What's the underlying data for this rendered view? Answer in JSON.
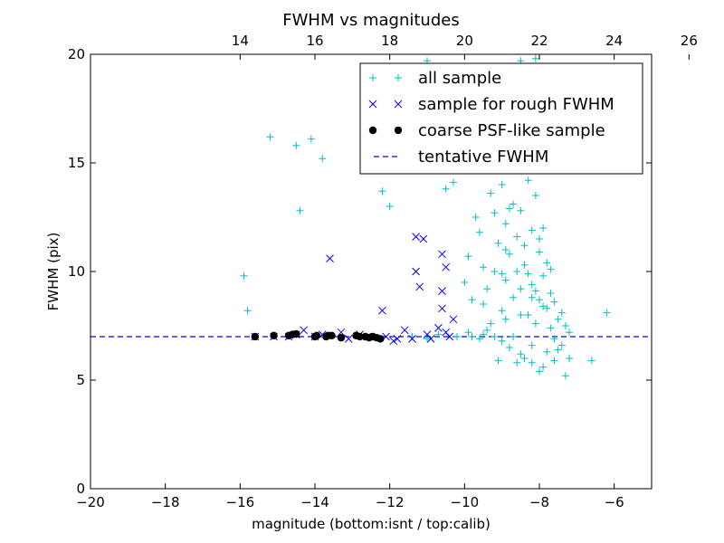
{
  "chart_data": {
    "type": "scatter",
    "title": "FWHM vs magnitudes",
    "xlabel": "magnitude (bottom:isnt / top:calib)",
    "ylabel": "FWHM (pix)",
    "xlim": [
      -20,
      -5
    ],
    "ylim": [
      0,
      20
    ],
    "x_ticks": [
      -20,
      -18,
      -16,
      -14,
      -12,
      -10,
      -8,
      -6
    ],
    "y_ticks": [
      0,
      5,
      10,
      15,
      20
    ],
    "top_axis": {
      "offset_from_bottom": 30,
      "ticks": [
        14,
        16,
        18,
        20,
        22,
        24,
        26
      ]
    },
    "grid": false,
    "legend_placement": "top-right",
    "tentative_fwhm": 7.0,
    "series": [
      {
        "name": "all sample",
        "marker": "plus",
        "color": "#00bfbf",
        "points": [
          [
            -15.9,
            9.8
          ],
          [
            -15.8,
            8.2
          ],
          [
            -15.2,
            16.2
          ],
          [
            -14.5,
            15.8
          ],
          [
            -14.4,
            12.8
          ],
          [
            -14.1,
            16.1
          ],
          [
            -13.8,
            15.2
          ],
          [
            -12.2,
            13.7
          ],
          [
            -12.0,
            13.0
          ],
          [
            -11.4,
            7.0
          ],
          [
            -11.0,
            19.7
          ],
          [
            -11.0,
            6.9
          ],
          [
            -10.7,
            7.1
          ],
          [
            -10.5,
            13.8
          ],
          [
            -10.3,
            14.1
          ],
          [
            -10.2,
            7.0
          ],
          [
            -9.9,
            7.2
          ],
          [
            -9.8,
            7.0
          ],
          [
            -9.6,
            6.9
          ],
          [
            -9.5,
            7.1
          ],
          [
            -9.4,
            7.3
          ],
          [
            -9.2,
            7.0
          ],
          [
            -9.0,
            6.8
          ],
          [
            -8.8,
            6.5
          ],
          [
            -8.5,
            6.2
          ],
          [
            -8.2,
            5.8
          ],
          [
            -7.9,
            5.6
          ],
          [
            -7.6,
            5.9
          ],
          [
            -7.3,
            5.2
          ],
          [
            -7.2,
            6.0
          ],
          [
            -6.6,
            5.9
          ],
          [
            -6.2,
            8.1
          ],
          [
            -8.6,
            5.8
          ],
          [
            -8.4,
            6.0
          ],
          [
            -9.1,
            5.9
          ],
          [
            -8.0,
            5.4
          ],
          [
            -7.5,
            6.4
          ],
          [
            -10.0,
            9.5
          ],
          [
            -9.9,
            10.7
          ],
          [
            -9.7,
            12.5
          ],
          [
            -9.6,
            11.8
          ],
          [
            -9.5,
            8.5
          ],
          [
            -9.4,
            9.2
          ],
          [
            -9.3,
            13.6
          ],
          [
            -9.2,
            10.0
          ],
          [
            -9.1,
            11.3
          ],
          [
            -9.0,
            14.0
          ],
          [
            -9.0,
            8.2
          ],
          [
            -8.9,
            12.2
          ],
          [
            -8.9,
            9.6
          ],
          [
            -8.8,
            15.8
          ],
          [
            -8.8,
            10.8
          ],
          [
            -8.7,
            13.1
          ],
          [
            -8.7,
            8.8
          ],
          [
            -8.6,
            16.5
          ],
          [
            -8.6,
            11.6
          ],
          [
            -8.5,
            12.8
          ],
          [
            -8.5,
            9.2
          ],
          [
            -8.4,
            17.0
          ],
          [
            -8.4,
            10.3
          ],
          [
            -8.3,
            14.2
          ],
          [
            -8.3,
            8.0
          ],
          [
            -8.2,
            11.9
          ],
          [
            -8.2,
            9.4
          ],
          [
            -8.1,
            13.5
          ],
          [
            -8.1,
            7.6
          ],
          [
            -8.0,
            10.9
          ],
          [
            -8.0,
            8.7
          ],
          [
            -7.9,
            12.0
          ],
          [
            -7.9,
            9.8
          ],
          [
            -7.8,
            8.3
          ],
          [
            -7.8,
            10.4
          ],
          [
            -7.7,
            9.0
          ],
          [
            -7.7,
            7.4
          ],
          [
            -7.6,
            8.6
          ],
          [
            -7.5,
            7.8
          ],
          [
            -7.4,
            8.1
          ],
          [
            -7.3,
            7.5
          ],
          [
            -7.2,
            7.2
          ],
          [
            -8.5,
            19.7
          ],
          [
            -8.3,
            18.8
          ],
          [
            -8.1,
            19.8
          ],
          [
            -8.6,
            14.9
          ],
          [
            -8.9,
            7.8
          ],
          [
            -9.3,
            7.6
          ],
          [
            -8.7,
            7.0
          ],
          [
            -8.2,
            6.6
          ],
          [
            -7.8,
            6.3
          ],
          [
            -7.6,
            6.9
          ],
          [
            -7.4,
            6.6
          ],
          [
            -9.8,
            8.7
          ],
          [
            -9.5,
            10.2
          ],
          [
            -9.2,
            12.7
          ],
          [
            -8.8,
            12.9
          ],
          [
            -8.4,
            11.2
          ],
          [
            -8.0,
            11.5
          ],
          [
            -7.7,
            10.1
          ],
          [
            -8.6,
            10.0
          ],
          [
            -8.3,
            9.9
          ],
          [
            -8.9,
            11.0
          ],
          [
            -8.1,
            9.1
          ],
          [
            -7.9,
            8.4
          ],
          [
            -8.5,
            8.0
          ],
          [
            -9.0,
            9.9
          ],
          [
            -8.2,
            8.8
          ]
        ]
      },
      {
        "name": "sample for rough FWHM",
        "marker": "x",
        "color": "#0000ff",
        "points": [
          [
            -15.6,
            7.0
          ],
          [
            -15.1,
            7.0
          ],
          [
            -14.7,
            7.0
          ],
          [
            -14.3,
            7.3
          ],
          [
            -13.8,
            7.1
          ],
          [
            -13.6,
            10.6
          ],
          [
            -13.3,
            7.2
          ],
          [
            -12.8,
            7.1
          ],
          [
            -12.2,
            8.2
          ],
          [
            -12.1,
            7.0
          ],
          [
            -11.9,
            6.8
          ],
          [
            -11.8,
            6.9
          ],
          [
            -11.6,
            7.3
          ],
          [
            -11.4,
            6.9
          ],
          [
            -11.3,
            11.6
          ],
          [
            -11.3,
            10.0
          ],
          [
            -11.2,
            9.3
          ],
          [
            -11.1,
            11.5
          ],
          [
            -11.0,
            7.1
          ],
          [
            -10.9,
            6.9
          ],
          [
            -10.7,
            7.4
          ],
          [
            -10.6,
            10.8
          ],
          [
            -10.6,
            9.1
          ],
          [
            -10.6,
            8.3
          ],
          [
            -10.5,
            10.2
          ],
          [
            -10.5,
            7.2
          ],
          [
            -10.4,
            7.0
          ],
          [
            -10.3,
            7.8
          ],
          [
            -12.6,
            7.0
          ],
          [
            -13.1,
            6.9
          ],
          [
            -14.0,
            7.0
          ],
          [
            -14.5,
            7.1
          ]
        ]
      },
      {
        "name": "coarse PSF-like sample",
        "marker": "circle",
        "color": "#000000",
        "points": [
          [
            -15.6,
            7.0
          ],
          [
            -15.1,
            7.05
          ],
          [
            -14.7,
            7.05
          ],
          [
            -14.6,
            7.1
          ],
          [
            -14.5,
            7.12
          ],
          [
            -14.0,
            7.0
          ],
          [
            -13.95,
            7.05
          ],
          [
            -13.7,
            7.0
          ],
          [
            -13.65,
            7.05
          ],
          [
            -13.55,
            7.05
          ],
          [
            -13.3,
            6.95
          ],
          [
            -12.9,
            7.05
          ],
          [
            -12.8,
            7.0
          ],
          [
            -12.65,
            7.0
          ],
          [
            -12.55,
            6.95
          ],
          [
            -12.45,
            7.0
          ],
          [
            -12.35,
            6.95
          ],
          [
            -12.25,
            6.9
          ]
        ]
      }
    ],
    "legend": [
      {
        "label": "all sample",
        "marker": "plus",
        "color": "#00bfbf"
      },
      {
        "label": "sample for rough FWHM",
        "marker": "x",
        "color": "#0000ff"
      },
      {
        "label": "coarse PSF-like sample",
        "marker": "circle",
        "color": "#000000"
      },
      {
        "label": "tentative FWHM",
        "marker": "dash",
        "color": "#0000ff"
      }
    ]
  }
}
